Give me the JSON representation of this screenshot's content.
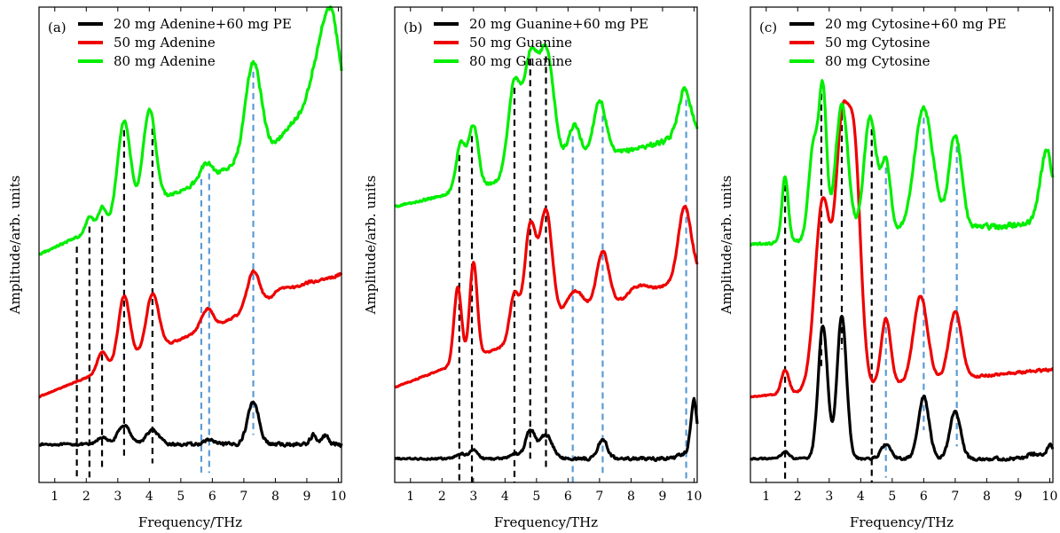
{
  "figure": {
    "xlabel": "Frequency/THz",
    "ylabel": "Amplitude/arb. units",
    "tick_labels": [
      "1",
      "2",
      "3",
      "4",
      "5",
      "6",
      "7",
      "8",
      "9",
      "10"
    ]
  },
  "chart_data": [
    {
      "type": "line",
      "panel": "(a)",
      "xlabel": "Frequency/THz",
      "ylabel": "Amplitude/arb. units",
      "xlim": [
        0.5,
        10.1
      ],
      "ylim": [
        0,
        100
      ],
      "x_ticks": [
        1,
        2,
        3,
        4,
        5,
        6,
        7,
        8,
        9,
        10
      ],
      "y_ticks": "none",
      "legend_position": "top-left",
      "series": [
        {
          "name": "20 mg Adenine+60 mg PE",
          "color": "#000000",
          "base": 8,
          "peaks": [
            [
              2.5,
              1.5,
              0.15
            ],
            [
              3.2,
              4,
              0.2
            ],
            [
              4.1,
              3,
              0.2
            ],
            [
              5.9,
              1,
              0.15
            ],
            [
              7.3,
              9,
              0.18
            ],
            [
              9.2,
              2,
              0.1
            ],
            [
              9.6,
              2,
              0.1
            ]
          ],
          "noise": 0.8
        },
        {
          "name": "50 mg Adenine",
          "color": "#ee0000",
          "base": 18,
          "slope": 2.7,
          "peaks": [
            [
              2.5,
              4,
              0.15
            ],
            [
              3.2,
              14,
              0.18
            ],
            [
              4.1,
              12,
              0.2
            ],
            [
              5.7,
              2,
              0.15
            ],
            [
              5.9,
              3,
              0.15
            ],
            [
              7.3,
              8,
              0.2
            ],
            [
              8.2,
              2,
              0.3
            ],
            [
              9.0,
              1,
              0.3
            ]
          ],
          "noise": 0.5
        },
        {
          "name": "80 mg Adenine",
          "color": "#00ee00",
          "base": 48,
          "slope": 3.0,
          "peaks": [
            [
              2.1,
              3,
              0.12
            ],
            [
              2.5,
              4,
              0.12
            ],
            [
              3.2,
              20,
              0.2
            ],
            [
              4.0,
              20,
              0.2
            ],
            [
              5.7,
              2,
              0.15
            ],
            [
              5.9,
              2,
              0.15
            ],
            [
              7.3,
              20,
              0.25
            ],
            [
              8.5,
              3,
              0.3
            ],
            [
              9.4,
              14,
              0.35
            ],
            [
              9.8,
              16,
              0.25
            ]
          ],
          "noise": 1.0
        }
      ],
      "markers": [
        {
          "x": 1.7,
          "color": "black"
        },
        {
          "x": 2.1,
          "color": "black"
        },
        {
          "x": 2.5,
          "color": "black"
        },
        {
          "x": 3.2,
          "color": "black"
        },
        {
          "x": 4.1,
          "color": "black"
        },
        {
          "x": 5.65,
          "color": "blue"
        },
        {
          "x": 5.9,
          "color": "blue"
        },
        {
          "x": 7.3,
          "color": "blue"
        }
      ]
    },
    {
      "type": "line",
      "panel": "(b)",
      "xlabel": "Frequency/THz",
      "ylabel": "Amplitude/arb. units",
      "xlim": [
        0.5,
        10.1
      ],
      "ylim": [
        0,
        100
      ],
      "x_ticks": [
        1,
        2,
        3,
        4,
        5,
        6,
        7,
        8,
        9,
        10
      ],
      "y_ticks": "none",
      "legend_position": "top-left",
      "series": [
        {
          "name": "20 mg Guanine+60 mg PE",
          "color": "#000000",
          "base": 5,
          "peaks": [
            [
              2.6,
              1,
              0.15
            ],
            [
              3.0,
              2,
              0.12
            ],
            [
              4.3,
              1,
              0.15
            ],
            [
              4.8,
              6,
              0.15
            ],
            [
              5.3,
              5,
              0.2
            ],
            [
              7.1,
              4,
              0.15
            ],
            [
              9.7,
              1,
              0.2
            ],
            [
              10.0,
              12,
              0.1
            ]
          ],
          "noise": 0.7
        },
        {
          "name": "50 mg Guanine",
          "color": "#ee0000",
          "base": 20,
          "slope": 2.5,
          "peaks": [
            [
              2.5,
              16,
              0.12
            ],
            [
              3.0,
              20,
              0.12
            ],
            [
              4.3,
              10,
              0.15
            ],
            [
              4.8,
              23,
              0.18
            ],
            [
              5.3,
              25,
              0.2
            ],
            [
              6.2,
              6,
              0.3
            ],
            [
              7.1,
              12,
              0.2
            ],
            [
              8.2,
              2,
              0.3
            ],
            [
              9.7,
              15,
              0.2
            ]
          ],
          "noise": 0.5
        },
        {
          "name": "80 mg Guanine",
          "color": "#00ee00",
          "base": 58,
          "slope": 1.6,
          "peaks": [
            [
              2.6,
              10,
              0.15
            ],
            [
              3.0,
              13,
              0.15
            ],
            [
              4.3,
              20,
              0.2
            ],
            [
              4.8,
              22,
              0.2
            ],
            [
              5.3,
              25,
              0.25
            ],
            [
              6.2,
              8,
              0.2
            ],
            [
              7.0,
              12,
              0.2
            ],
            [
              9.7,
              10,
              0.2
            ]
          ],
          "noise": 1.0
        }
      ],
      "markers": [
        {
          "x": 2.55,
          "color": "black"
        },
        {
          "x": 2.95,
          "color": "black"
        },
        {
          "x": 4.3,
          "color": "black"
        },
        {
          "x": 4.8,
          "color": "black"
        },
        {
          "x": 5.3,
          "color": "black"
        },
        {
          "x": 6.15,
          "color": "blue"
        },
        {
          "x": 7.1,
          "color": "blue"
        },
        {
          "x": 9.75,
          "color": "blue"
        }
      ]
    },
    {
      "type": "line",
      "panel": "(c)",
      "xlabel": "Frequency/THz",
      "ylabel": "Amplitude/arb. units",
      "xlim": [
        0.5,
        10.1
      ],
      "ylim": [
        0,
        100
      ],
      "x_ticks": [
        1,
        2,
        3,
        4,
        5,
        6,
        7,
        8,
        9,
        10
      ],
      "y_ticks": "none",
      "legend_position": "top-left",
      "series": [
        {
          "name": "20 mg Cytosine+60 mg PE",
          "color": "#000000",
          "base": 5,
          "peaks": [
            [
              1.6,
              1.5,
              0.12
            ],
            [
              2.8,
              28,
              0.15
            ],
            [
              3.4,
              30,
              0.15
            ],
            [
              4.8,
              3,
              0.15
            ],
            [
              6.0,
              13,
              0.17
            ],
            [
              7.0,
              10,
              0.17
            ],
            [
              9.5,
              1,
              0.2
            ],
            [
              10.0,
              3,
              0.1
            ]
          ],
          "noise": 0.7
        },
        {
          "name": "50 mg Cytosine",
          "color": "#ee0000",
          "base": 18,
          "slope": 0.6,
          "peaks": [
            [
              1.6,
              5,
              0.12
            ],
            [
              2.8,
              40,
              0.25
            ],
            [
              3.4,
              50,
              0.2
            ],
            [
              3.8,
              48,
              0.2
            ],
            [
              4.8,
              14,
              0.15
            ],
            [
              5.9,
              18,
              0.22
            ],
            [
              7.0,
              14,
              0.2
            ]
          ],
          "noise": 0.5
        },
        {
          "name": "80 mg Cytosine",
          "color": "#00ee00",
          "base": 50,
          "slope": 0.5,
          "peaks": [
            [
              1.6,
              14,
              0.1
            ],
            [
              2.5,
              20,
              0.15
            ],
            [
              2.8,
              30,
              0.12
            ],
            [
              3.4,
              28,
              0.2
            ],
            [
              4.3,
              25,
              0.2
            ],
            [
              4.8,
              15,
              0.15
            ],
            [
              6.0,
              26,
              0.3
            ],
            [
              7.0,
              20,
              0.2
            ],
            [
              9.9,
              15,
              0.2
            ]
          ],
          "noise": 1.2
        }
      ],
      "markers": [
        {
          "x": 1.6,
          "color": "black"
        },
        {
          "x": 2.75,
          "color": "black"
        },
        {
          "x": 3.4,
          "color": "black"
        },
        {
          "x": 4.35,
          "color": "black"
        },
        {
          "x": 4.8,
          "color": "blue"
        },
        {
          "x": 6.0,
          "color": "blue"
        },
        {
          "x": 7.05,
          "color": "blue"
        }
      ]
    }
  ]
}
